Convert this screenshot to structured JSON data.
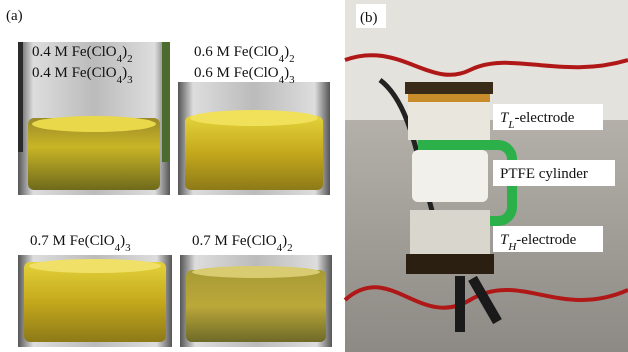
{
  "panel_a": {
    "label": "(a)",
    "photos": [
      {
        "captions": [
          [
            {
              "text": "0.4 M Fe(ClO"
            },
            {
              "sub": "4"
            },
            {
              "text": ")"
            },
            {
              "sub": "2"
            }
          ],
          [
            {
              "text": "0.4 M Fe(ClO"
            },
            {
              "sub": "4"
            },
            {
              "text": ")"
            },
            {
              "sub": "3"
            }
          ]
        ]
      },
      {
        "captions": [
          [
            {
              "text": "0.6 M Fe(ClO"
            },
            {
              "sub": "4"
            },
            {
              "text": ")"
            },
            {
              "sub": "2"
            }
          ],
          [
            {
              "text": "0.6 M Fe(ClO"
            },
            {
              "sub": "4"
            },
            {
              "text": ")"
            },
            {
              "sub": "3"
            }
          ]
        ]
      },
      {
        "captions": [
          [
            {
              "text": "0.7 M Fe(ClO"
            },
            {
              "sub": "4"
            },
            {
              "text": ")"
            },
            {
              "sub": "3"
            }
          ]
        ]
      },
      {
        "captions": [
          [
            {
              "text": "0.7 M Fe(ClO"
            },
            {
              "sub": "4"
            },
            {
              "text": ")"
            },
            {
              "sub": "2"
            }
          ]
        ]
      }
    ]
  },
  "panel_b": {
    "label": "(b)",
    "annotations": [
      [
        {
          "italic": "T"
        },
        {
          "sub_italic": "L"
        },
        {
          "text": "-electrode"
        }
      ],
      [
        {
          "text": "PTFE cylinder"
        }
      ],
      [
        {
          "italic": "T"
        },
        {
          "sub_italic": "H"
        },
        {
          "text": "-electrode"
        }
      ]
    ]
  }
}
